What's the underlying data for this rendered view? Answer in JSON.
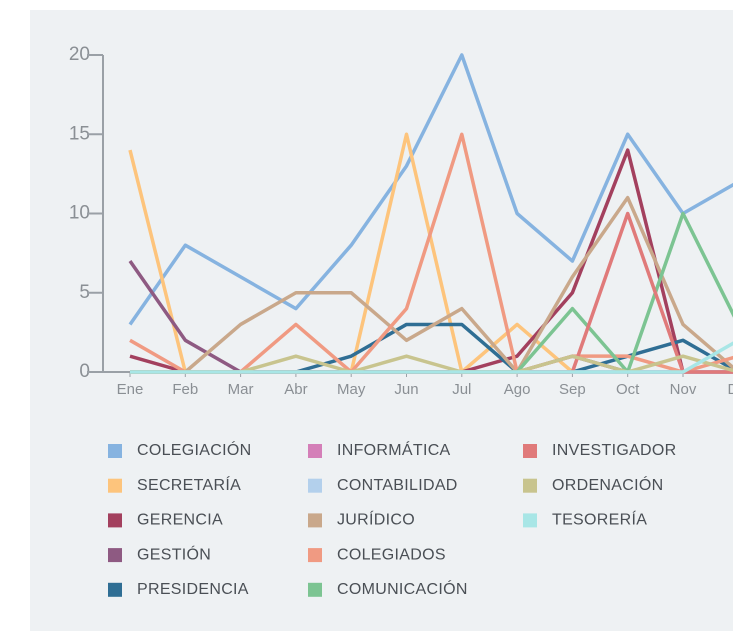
{
  "chart_data": {
    "type": "line",
    "categories": [
      "Ene",
      "Feb",
      "Mar",
      "Abr",
      "May",
      "Jun",
      "Jul",
      "Ago",
      "Sep",
      "Oct",
      "Nov",
      "Dic"
    ],
    "ylim": [
      0,
      20
    ],
    "yticks": [
      0,
      5,
      10,
      15,
      20
    ],
    "series": [
      {
        "name": "COLEGIACIÓN",
        "color": "#86b3e0",
        "values": [
          3,
          8,
          6,
          4,
          8,
          13,
          20,
          10,
          7,
          15,
          10,
          12
        ]
      },
      {
        "name": "SECRETARÍA",
        "color": "#fdc47c",
        "values": [
          14,
          0,
          0,
          0,
          0,
          15,
          0,
          3,
          0,
          0,
          0,
          0
        ]
      },
      {
        "name": "GERENCIA",
        "color": "#a3405e",
        "values": [
          1,
          0,
          0,
          0,
          0,
          0,
          0,
          1,
          5,
          14,
          0,
          0
        ]
      },
      {
        "name": "GESTIÓN",
        "color": "#8e5a82",
        "values": [
          7,
          2,
          0,
          0,
          0,
          0,
          0,
          0,
          1,
          0,
          0,
          0
        ]
      },
      {
        "name": "PRESIDENCIA",
        "color": "#2f6e94",
        "values": [
          0,
          0,
          0,
          0,
          1,
          3,
          3,
          0,
          0,
          1,
          2,
          0
        ]
      },
      {
        "name": "INFORMÁTICA",
        "color": "#d47fb8",
        "values": [
          0,
          0,
          0,
          0,
          0,
          0,
          0,
          0,
          0,
          0,
          0,
          0
        ]
      },
      {
        "name": "CONTABILIDAD",
        "color": "#b3d0ec",
        "values": [
          0,
          0,
          0,
          0,
          0,
          0,
          0,
          0,
          0,
          0,
          0,
          0
        ]
      },
      {
        "name": "JURÍDICO",
        "color": "#c9a88b",
        "values": [
          0,
          0,
          3,
          5,
          5,
          2,
          4,
          0,
          6,
          11,
          3,
          0
        ]
      },
      {
        "name": "COLEGIADOS",
        "color": "#f09a82",
        "values": [
          2,
          0,
          0,
          3,
          0,
          4,
          15,
          0,
          1,
          1,
          0,
          1
        ]
      },
      {
        "name": "COMUNICACIÓN",
        "color": "#7cc492",
        "values": [
          0,
          0,
          0,
          0,
          0,
          0,
          0,
          0,
          4,
          0,
          10,
          3
        ]
      },
      {
        "name": "INVESTIGADOR",
        "color": "#e07a7a",
        "values": [
          0,
          0,
          0,
          0,
          0,
          0,
          0,
          0,
          0,
          10,
          0,
          0
        ]
      },
      {
        "name": "ORDENACIÓN",
        "color": "#c8c48e",
        "values": [
          0,
          0,
          0,
          1,
          0,
          1,
          0,
          0,
          1,
          0,
          1,
          0
        ]
      },
      {
        "name": "TESORERÍA",
        "color": "#a8e6e6",
        "values": [
          0,
          0,
          0,
          0,
          0,
          0,
          0,
          0,
          0,
          0,
          0,
          2
        ]
      }
    ]
  }
}
